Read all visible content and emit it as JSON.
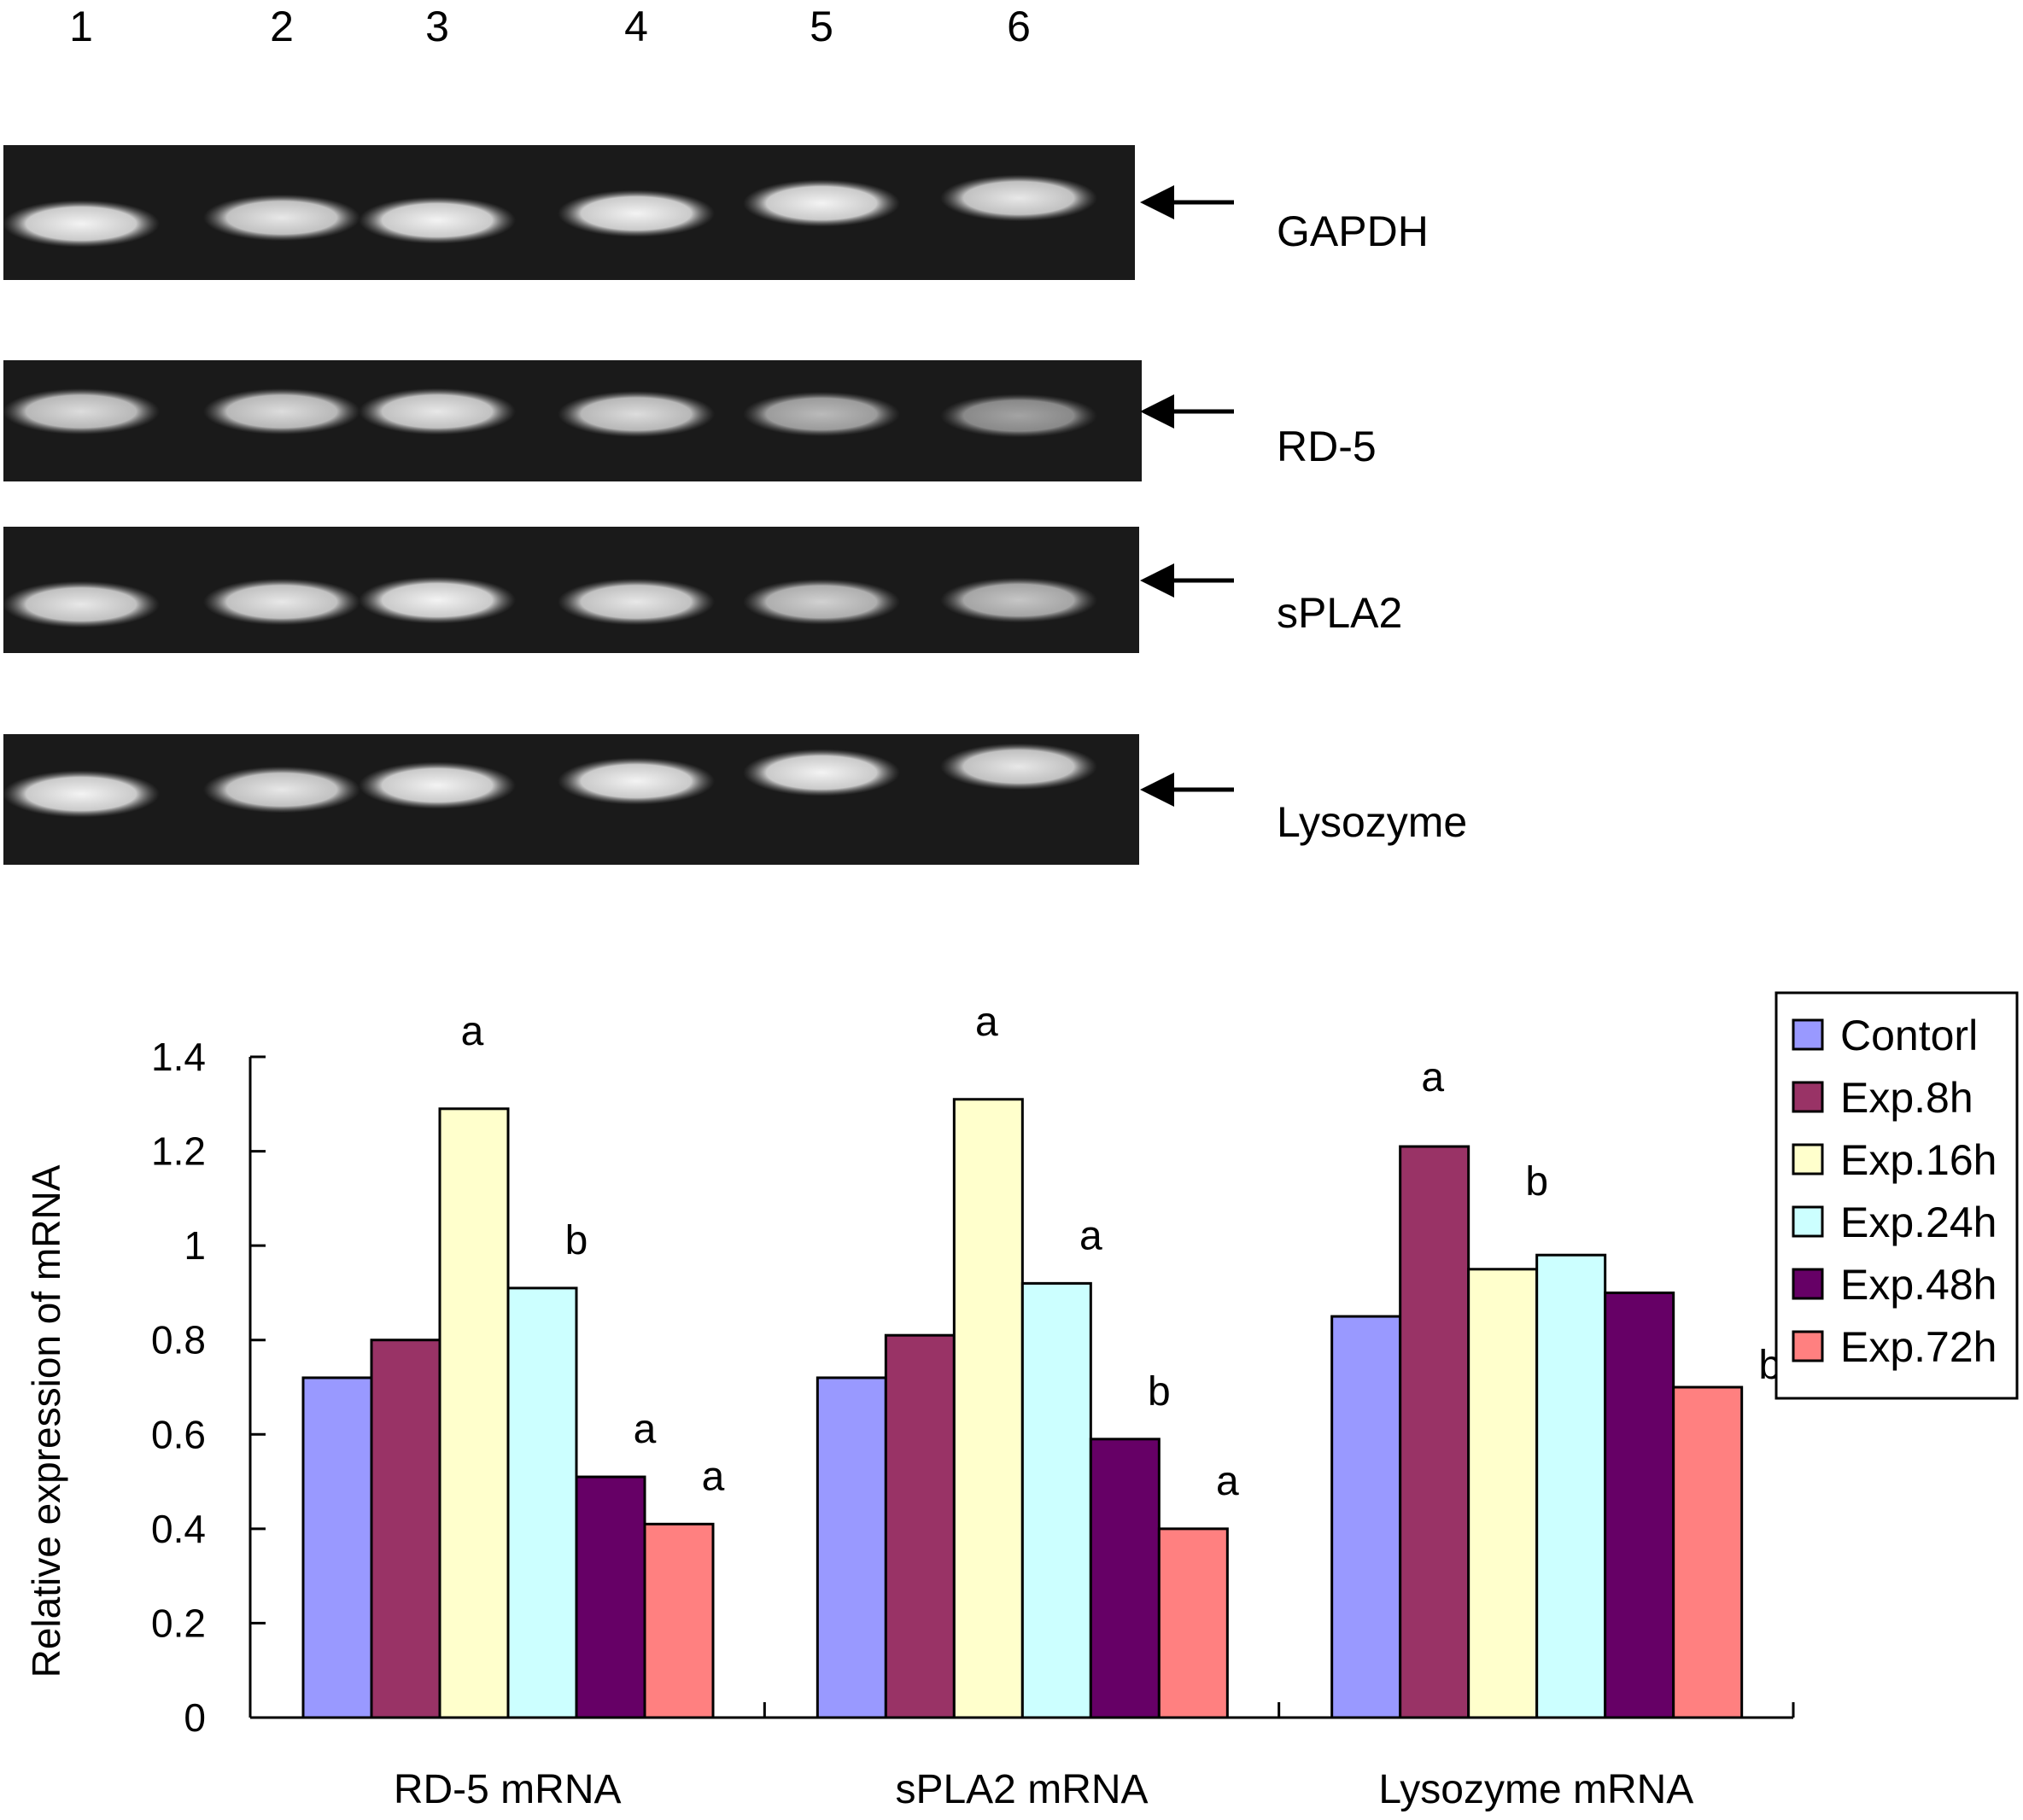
{
  "gel": {
    "lanes": [
      "1",
      "2",
      "3",
      "4",
      "5",
      "6"
    ],
    "genes": [
      {
        "name": "GAPDH",
        "band_intensity": [
          0.95,
          0.9,
          0.95,
          0.95,
          0.95,
          0.9
        ]
      },
      {
        "name": "RD-5",
        "band_intensity": [
          0.85,
          0.85,
          0.9,
          0.85,
          0.7,
          0.6
        ]
      },
      {
        "name": "sPLA2",
        "band_intensity": [
          0.9,
          0.9,
          0.95,
          0.9,
          0.8,
          0.75
        ]
      },
      {
        "name": "Lysozyme",
        "band_intensity": [
          0.95,
          0.9,
          0.95,
          0.95,
          0.95,
          0.9
        ]
      }
    ]
  },
  "chart_data": {
    "type": "bar",
    "ylabel": "Relative expression of mRNA",
    "xlabel": "",
    "ylim": [
      0,
      1.4
    ],
    "yticks": [
      "0",
      "0.2",
      "0.4",
      "0.6",
      "0.8",
      "1",
      "1.2",
      "1.4"
    ],
    "categories": [
      "RD-5 mRNA",
      "sPLA2 mRNA",
      "Lysozyme mRNA"
    ],
    "series": [
      {
        "name": "Contorl",
        "color": "#9999ff",
        "values": [
          0.72,
          0.72,
          0.85
        ]
      },
      {
        "name": "Exp.8h",
        "color": "#993366",
        "values": [
          0.8,
          0.81,
          1.21
        ]
      },
      {
        "name": "Exp.16h",
        "color": "#ffffcc",
        "values": [
          1.29,
          1.31,
          0.95
        ]
      },
      {
        "name": "Exp.24h",
        "color": "#ccffff",
        "values": [
          0.91,
          0.92,
          0.98
        ]
      },
      {
        "name": "Exp.48h",
        "color": "#660066",
        "values": [
          0.51,
          0.59,
          0.9
        ]
      },
      {
        "name": "Exp.72h",
        "color": "#ff8080",
        "values": [
          0.41,
          0.4,
          0.7
        ]
      }
    ],
    "annotations": [
      {
        "text": "a",
        "category": 0,
        "series": 2
      },
      {
        "text": "b",
        "category": 0,
        "series": 3
      },
      {
        "text": "a",
        "category": 0,
        "series": 4
      },
      {
        "text": "a",
        "category": 0,
        "series": 5
      },
      {
        "text": "a",
        "category": 1,
        "series": 2
      },
      {
        "text": "a",
        "category": 1,
        "series": 3
      },
      {
        "text": "b",
        "category": 1,
        "series": 4
      },
      {
        "text": "a",
        "category": 1,
        "series": 5
      },
      {
        "text": "a",
        "category": 2,
        "series": 1
      },
      {
        "text": "b",
        "category": 2,
        "series": 3
      },
      {
        "text": "b",
        "category": 2,
        "series": 5
      }
    ],
    "legend_position": "top-right",
    "grid": false
  }
}
